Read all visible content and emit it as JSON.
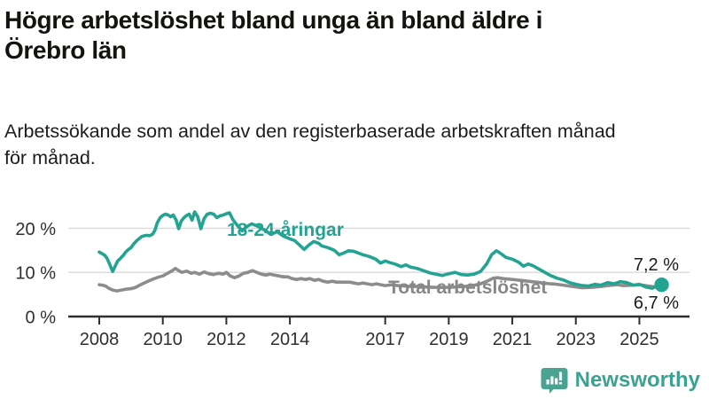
{
  "title": {
    "line1": "Högre arbetslöshet bland unga än bland äldre i",
    "line2": "Örebro län"
  },
  "subtitle": {
    "line1": "Arbetssökande som andel av den registerbaserade arbetskraften månad",
    "line2": "för månad."
  },
  "branding": {
    "name": "Newsworthy",
    "icon": "speech-bubble-with-bar-chart-and-exclamation",
    "color": "#3aa293"
  },
  "colors": {
    "youth_line": "#23a492",
    "total_line": "#8c8c8c",
    "axis": "#2f2f2f",
    "grid": "#d9d9d9",
    "text": "#1c1c1a"
  },
  "chart_data": {
    "type": "line",
    "title": "Högre arbetslöshet bland unga än bland äldre i Örebro län",
    "subtitle": "Arbetssökande som andel av den registerbaserade arbetskraften månad för månad.",
    "unit": "%",
    "grid": true,
    "legend": "inline-labels",
    "x_range": [
      2008,
      2025.9
    ],
    "y_axis": {
      "range": [
        0,
        25
      ],
      "ticks": [
        {
          "value": 0,
          "label": "0 %"
        },
        {
          "value": 10,
          "label": "10 %"
        },
        {
          "value": 20,
          "label": "20 %"
        }
      ]
    },
    "x_axis": {
      "ticks": [
        {
          "year": 2008,
          "label": "2008"
        },
        {
          "year": 2010,
          "label": "2010"
        },
        {
          "year": 2012,
          "label": "2012"
        },
        {
          "year": 2014,
          "label": "2014"
        },
        {
          "year": 2017,
          "label": "2017"
        },
        {
          "year": 2019,
          "label": "2019"
        },
        {
          "year": 2021,
          "label": "2021"
        },
        {
          "year": 2023,
          "label": "2023"
        },
        {
          "year": 2025,
          "label": "2025"
        }
      ]
    },
    "series": [
      {
        "name": "18-24-åringar",
        "color": "#23a492",
        "end_label": "7,2 %",
        "end_value": 7.2,
        "x": [
          2008.0,
          2008.1,
          2008.17,
          2008.25,
          2008.33,
          2008.42,
          2008.5,
          2008.58,
          2008.67,
          2008.75,
          2008.83,
          2008.92,
          2009.0,
          2009.08,
          2009.17,
          2009.25,
          2009.33,
          2009.42,
          2009.5,
          2009.58,
          2009.67,
          2009.75,
          2009.83,
          2009.92,
          2010.0,
          2010.08,
          2010.17,
          2010.25,
          2010.33,
          2010.42,
          2010.5,
          2010.58,
          2010.67,
          2010.75,
          2010.83,
          2010.92,
          2011.0,
          2011.1,
          2011.2,
          2011.3,
          2011.4,
          2011.5,
          2011.6,
          2011.7,
          2011.8,
          2011.9,
          2012.0,
          2012.1,
          2012.2,
          2012.35,
          2012.5,
          2012.65,
          2012.8,
          2013.0,
          2013.2,
          2013.4,
          2013.6,
          2013.8,
          2014.0,
          2014.15,
          2014.3,
          2014.45,
          2014.6,
          2014.75,
          2014.9,
          2015.0,
          2015.2,
          2015.4,
          2015.55,
          2015.7,
          2015.85,
          2016.0,
          2016.15,
          2016.3,
          2016.5,
          2016.7,
          2016.85,
          2017.0,
          2017.15,
          2017.3,
          2017.5,
          2017.65,
          2017.8,
          2018.0,
          2018.2,
          2018.4,
          2018.6,
          2018.8,
          2019.0,
          2019.2,
          2019.4,
          2019.6,
          2019.8,
          2020.0,
          2020.2,
          2020.35,
          2020.5,
          2020.65,
          2020.8,
          2021.0,
          2021.2,
          2021.35,
          2021.5,
          2021.65,
          2021.8,
          2022.0,
          2022.2,
          2022.4,
          2022.6,
          2022.8,
          2023.0,
          2023.2,
          2023.4,
          2023.6,
          2023.8,
          2024.0,
          2024.2,
          2024.4,
          2024.6,
          2024.8,
          2025.0,
          2025.2,
          2025.4,
          2025.55,
          2025.7
        ],
        "y": [
          14.6,
          14.2,
          13.9,
          13.1,
          11.8,
          10.2,
          11.4,
          12.6,
          13.2,
          13.8,
          14.6,
          15.2,
          15.6,
          16.4,
          17.1,
          17.6,
          18.1,
          18.3,
          18.4,
          18.3,
          18.6,
          19.5,
          21.3,
          22.4,
          22.9,
          23.2,
          23.0,
          22.6,
          23.0,
          21.8,
          19.9,
          21.6,
          22.4,
          22.9,
          23.2,
          21.8,
          23.7,
          22.6,
          19.9,
          22.2,
          23.2,
          23.4,
          23.2,
          22.4,
          22.8,
          23.0,
          23.3,
          23.5,
          22.0,
          20.6,
          19.4,
          20.4,
          21.0,
          20.4,
          19.6,
          18.6,
          19.2,
          18.2,
          17.6,
          17.2,
          16.2,
          15.2,
          16.2,
          17.0,
          16.6,
          16.0,
          15.6,
          15.0,
          14.0,
          14.4,
          14.9,
          14.8,
          14.4,
          14.0,
          13.6,
          13.0,
          12.1,
          12.6,
          12.2,
          11.9,
          11.3,
          11.7,
          11.2,
          10.9,
          10.4,
          9.9,
          9.6,
          9.3,
          9.7,
          10.0,
          9.5,
          9.4,
          9.6,
          10.2,
          12.0,
          14.0,
          14.9,
          14.2,
          13.4,
          13.0,
          12.3,
          11.4,
          11.9,
          11.5,
          10.9,
          10.1,
          9.3,
          8.7,
          8.3,
          7.7,
          7.3,
          7.0,
          6.9,
          7.3,
          7.1,
          7.7,
          7.4,
          7.9,
          7.7,
          7.1,
          7.3,
          6.7,
          6.4,
          6.9,
          7.2
        ]
      },
      {
        "name": "Total arbetslöshet",
        "color": "#8c8c8c",
        "end_label": "6,7 %",
        "end_value": 6.7,
        "x": [
          2008.0,
          2008.1,
          2008.2,
          2008.3,
          2008.42,
          2008.55,
          2008.7,
          2008.85,
          2009.0,
          2009.15,
          2009.3,
          2009.5,
          2009.7,
          2009.85,
          2010.0,
          2010.15,
          2010.3,
          2010.4,
          2010.5,
          2010.6,
          2010.75,
          2010.9,
          2011.0,
          2011.15,
          2011.3,
          2011.45,
          2011.6,
          2011.75,
          2011.9,
          2012.0,
          2012.12,
          2012.26,
          2012.4,
          2012.54,
          2012.68,
          2012.82,
          2012.96,
          2013.1,
          2013.24,
          2013.38,
          2013.51,
          2013.65,
          2013.79,
          2013.93,
          2014.07,
          2014.21,
          2014.35,
          2014.49,
          2014.63,
          2014.77,
          2014.91,
          2015.05,
          2015.19,
          2015.33,
          2015.47,
          2015.6,
          2015.74,
          2015.88,
          2016.02,
          2016.16,
          2016.3,
          2016.44,
          2016.58,
          2016.72,
          2016.86,
          2017.0,
          2017.2,
          2017.4,
          2017.6,
          2017.8,
          2018.0,
          2018.25,
          2018.5,
          2018.75,
          2019.0,
          2019.25,
          2019.5,
          2019.75,
          2020.0,
          2020.2,
          2020.4,
          2020.55,
          2020.7,
          2020.85,
          2021.0,
          2021.25,
          2021.5,
          2021.75,
          2022.0,
          2022.2,
          2022.4,
          2022.6,
          2022.8,
          2023.0,
          2023.2,
          2023.5,
          2023.8,
          2024.0,
          2024.3,
          2024.5,
          2024.8,
          2025.0,
          2025.2,
          2025.4,
          2025.55,
          2025.7
        ],
        "y": [
          7.2,
          7.1,
          6.9,
          6.4,
          6.0,
          5.8,
          6.0,
          6.2,
          6.3,
          6.6,
          7.2,
          7.9,
          8.5,
          8.9,
          9.2,
          9.8,
          10.4,
          10.9,
          10.4,
          10.0,
          10.3,
          9.8,
          10.0,
          9.6,
          10.1,
          9.7,
          9.5,
          9.8,
          9.6,
          10.0,
          9.2,
          8.8,
          9.2,
          9.8,
          10.0,
          10.4,
          10.0,
          9.6,
          9.4,
          9.6,
          9.4,
          9.2,
          9.0,
          9.0,
          8.6,
          8.4,
          8.6,
          8.4,
          8.6,
          8.2,
          8.4,
          8.0,
          7.8,
          8.0,
          7.8,
          7.8,
          7.8,
          7.8,
          7.6,
          7.4,
          7.6,
          7.4,
          7.2,
          7.4,
          7.2,
          7.0,
          7.2,
          7.0,
          6.9,
          6.8,
          6.8,
          6.7,
          6.6,
          6.6,
          6.6,
          6.7,
          6.8,
          7.0,
          7.4,
          8.0,
          8.7,
          8.8,
          8.6,
          8.5,
          8.4,
          8.2,
          8.0,
          7.8,
          7.6,
          7.4,
          7.3,
          7.1,
          6.9,
          6.7,
          6.5,
          6.6,
          6.8,
          7.0,
          7.2,
          7.0,
          7.1,
          7.2,
          7.0,
          6.8,
          6.6,
          6.7
        ]
      }
    ]
  }
}
